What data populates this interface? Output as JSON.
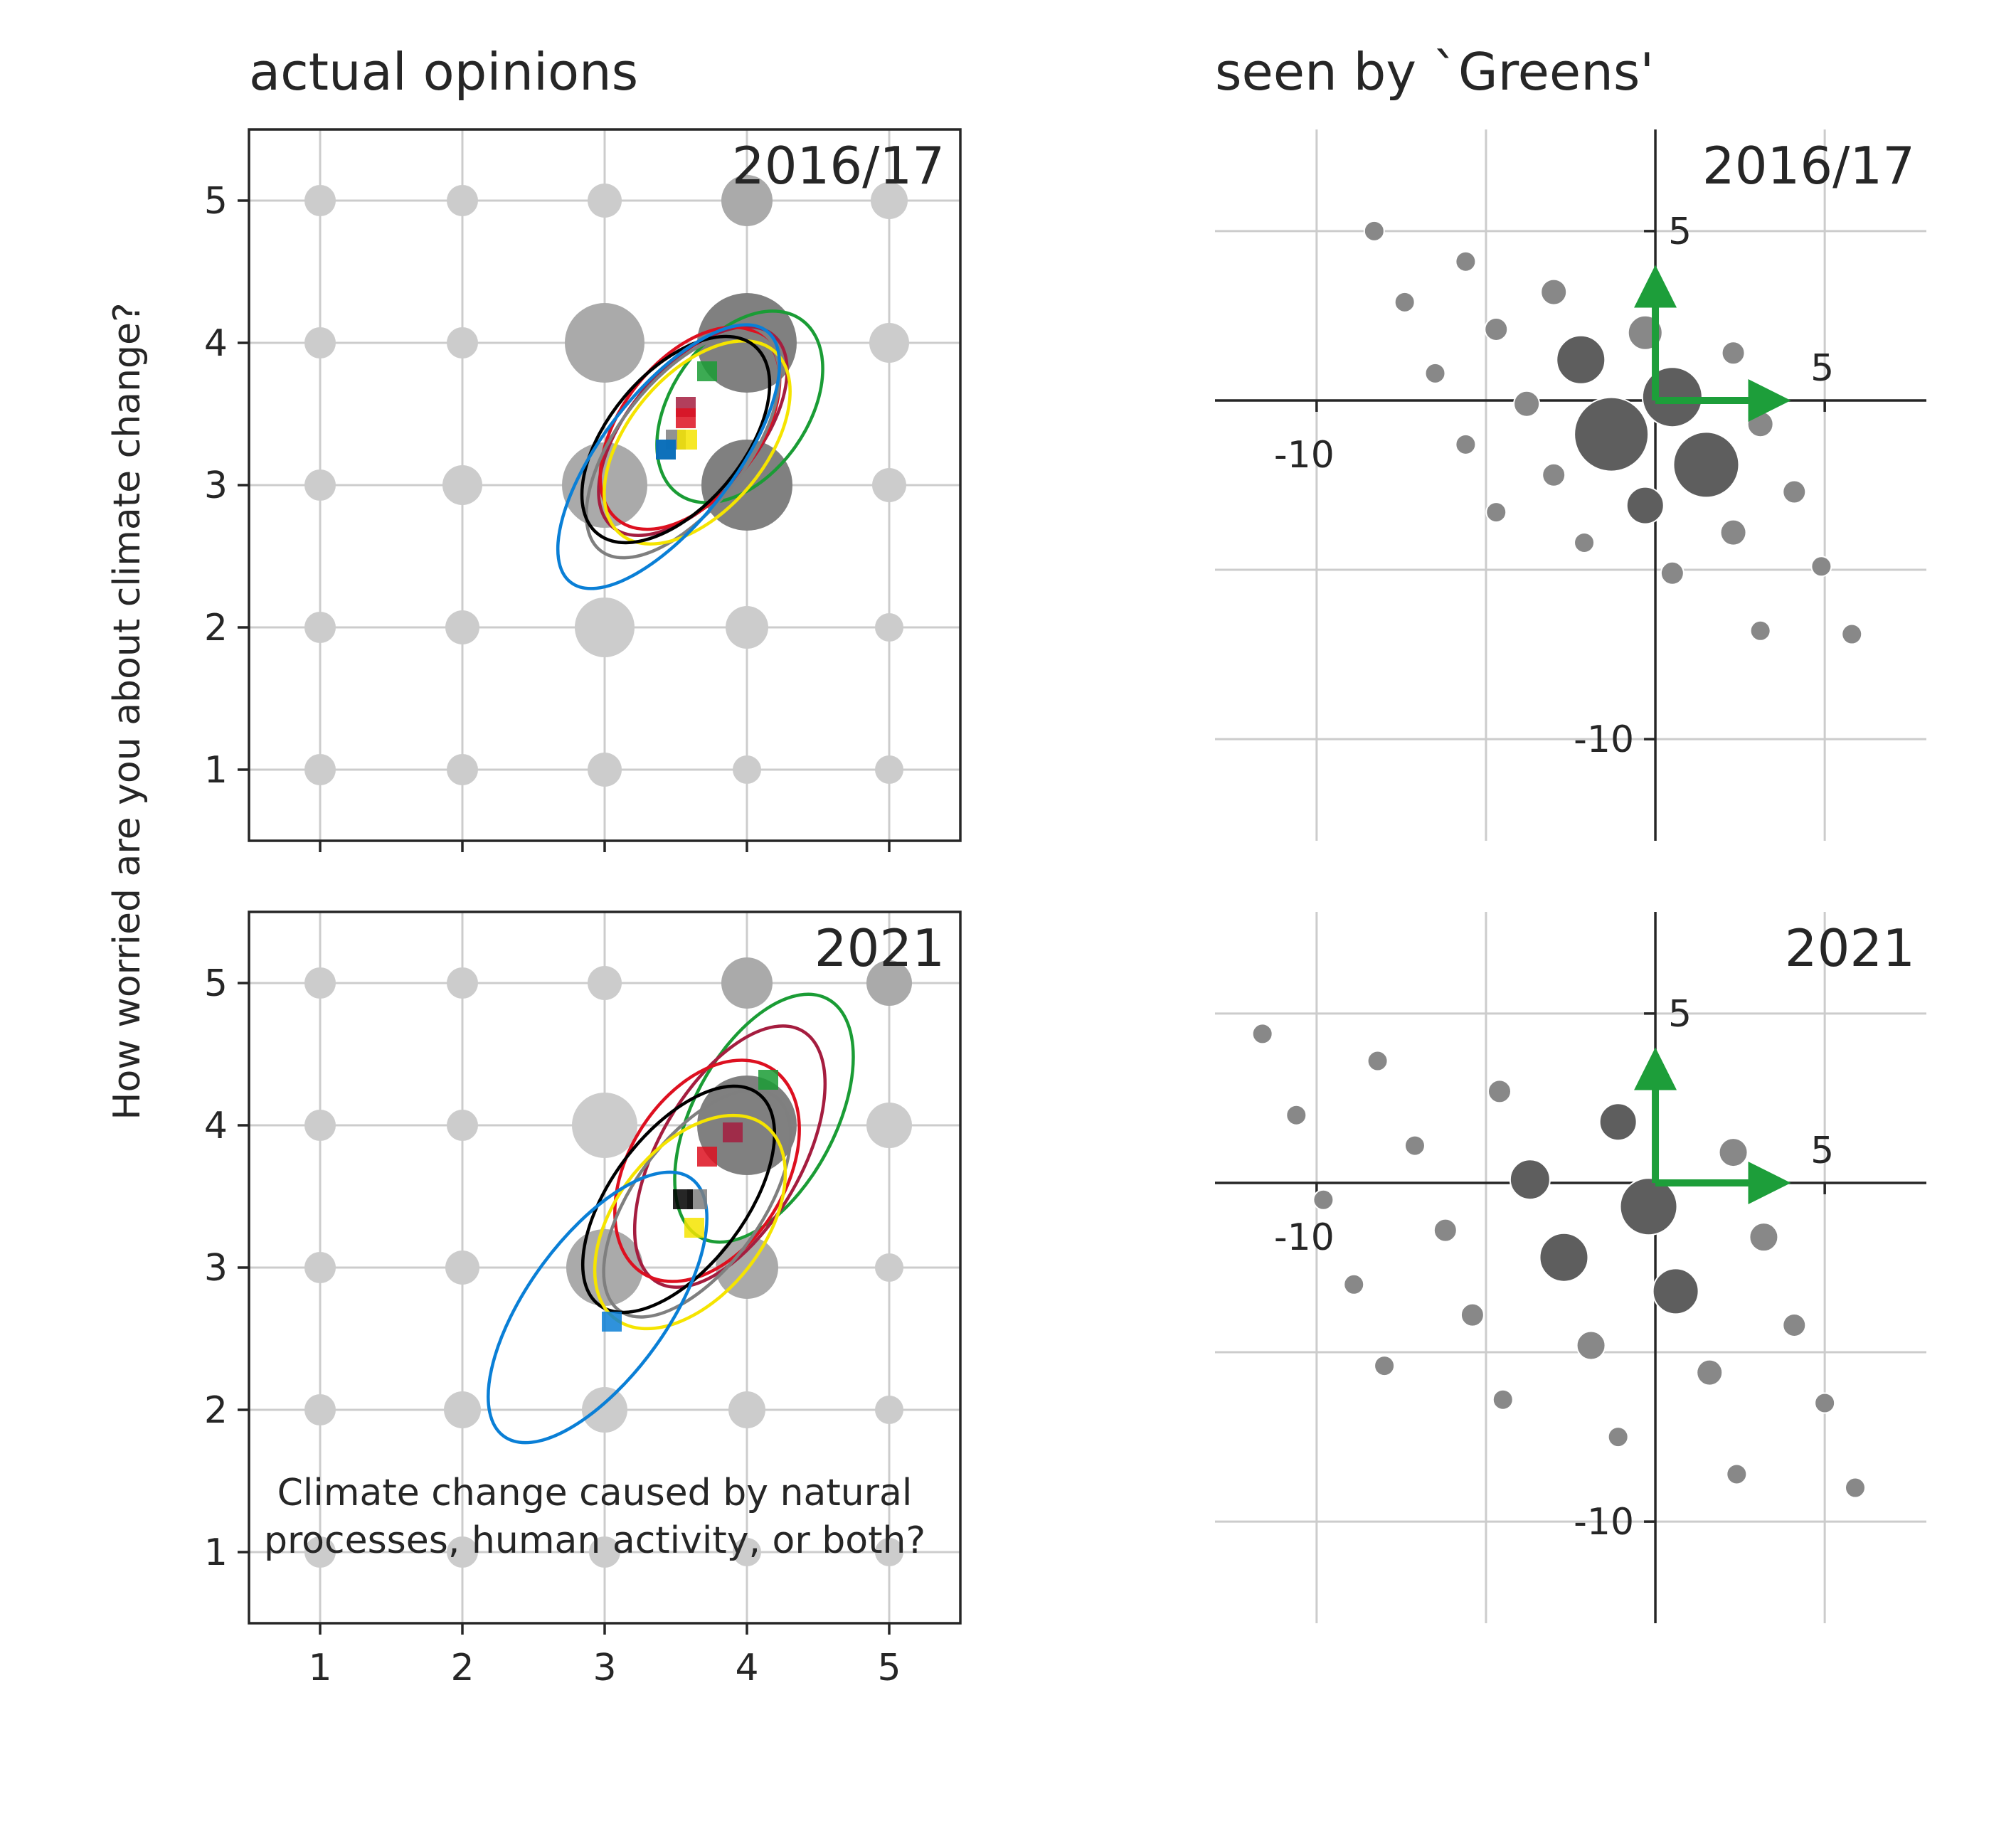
{
  "figure": {
    "left_title": "actual opinions",
    "right_title": "seen by `Greens'",
    "ylabel": "How worried are you about climate change?",
    "xlabel_line1": "Climate change caused by natural",
    "xlabel_line2": "processes, human activity, or both?"
  },
  "colors": {
    "grid": "#cccccc",
    "axis": "#262626",
    "bubble_light": "#cccccc",
    "bubble_mid": "#aaaaaa",
    "bubble_dark": "#808080",
    "embed_point": "#888888",
    "embed_big": "#5e5e5e",
    "arrow": "#1d9e3a"
  },
  "chart_data": [
    {
      "type": "scatter",
      "panel": "actual opinions",
      "title": "2016/17",
      "xlim": [
        0.5,
        5.5
      ],
      "ylim": [
        0.5,
        5.5
      ],
      "xticks": [
        1,
        2,
        3,
        4,
        5
      ],
      "yticks": [
        1,
        2,
        3,
        4,
        5
      ],
      "xtick_labels_shown": false,
      "bubbles": [
        {
          "x": 1,
          "y": 1,
          "size": 11,
          "tone": "light"
        },
        {
          "x": 2,
          "y": 1,
          "size": 11,
          "tone": "light"
        },
        {
          "x": 3,
          "y": 1,
          "size": 12,
          "tone": "light"
        },
        {
          "x": 4,
          "y": 1,
          "size": 10,
          "tone": "light"
        },
        {
          "x": 5,
          "y": 1,
          "size": 10,
          "tone": "light"
        },
        {
          "x": 1,
          "y": 2,
          "size": 11,
          "tone": "light"
        },
        {
          "x": 2,
          "y": 2,
          "size": 12,
          "tone": "light"
        },
        {
          "x": 3,
          "y": 2,
          "size": 21,
          "tone": "light"
        },
        {
          "x": 4,
          "y": 2,
          "size": 15,
          "tone": "light"
        },
        {
          "x": 5,
          "y": 2,
          "size": 10,
          "tone": "light"
        },
        {
          "x": 1,
          "y": 3,
          "size": 11,
          "tone": "light"
        },
        {
          "x": 2,
          "y": 3,
          "size": 14,
          "tone": "light"
        },
        {
          "x": 3,
          "y": 3,
          "size": 30,
          "tone": "mid"
        },
        {
          "x": 4,
          "y": 3,
          "size": 32,
          "tone": "dark"
        },
        {
          "x": 5,
          "y": 3,
          "size": 12,
          "tone": "light"
        },
        {
          "x": 1,
          "y": 4,
          "size": 11,
          "tone": "light"
        },
        {
          "x": 2,
          "y": 4,
          "size": 11,
          "tone": "light"
        },
        {
          "x": 3,
          "y": 4,
          "size": 28,
          "tone": "mid"
        },
        {
          "x": 4,
          "y": 4,
          "size": 35,
          "tone": "dark"
        },
        {
          "x": 5,
          "y": 4,
          "size": 14,
          "tone": "light"
        },
        {
          "x": 1,
          "y": 5,
          "size": 11,
          "tone": "light"
        },
        {
          "x": 2,
          "y": 5,
          "size": 11,
          "tone": "light"
        },
        {
          "x": 3,
          "y": 5,
          "size": 12,
          "tone": "light"
        },
        {
          "x": 4,
          "y": 5,
          "size": 18,
          "tone": "mid"
        },
        {
          "x": 5,
          "y": 5,
          "size": 13,
          "tone": "light"
        }
      ],
      "groups": [
        {
          "color": "#1a9c35",
          "mean": [
            3.72,
            3.8
          ],
          "ellipse": {
            "cx": 3.95,
            "cy": 3.55,
            "rx": 0.48,
            "ry": 0.75,
            "angle": 35
          }
        },
        {
          "color": "#a51d3f",
          "mean": [
            3.57,
            3.55
          ],
          "ellipse": {
            "cx": 3.62,
            "cy": 3.38,
            "rx": 0.45,
            "ry": 0.88,
            "angle": 40
          }
        },
        {
          "color": "#dd1020",
          "mean": [
            3.57,
            3.47
          ],
          "ellipse": {
            "cx": 3.6,
            "cy": 3.4,
            "rx": 0.48,
            "ry": 0.82,
            "angle": 38
          }
        },
        {
          "color": "#7f7f7f",
          "mean": [
            3.5,
            3.32
          ],
          "ellipse": {
            "cx": 3.55,
            "cy": 3.28,
            "rx": 0.45,
            "ry": 0.94,
            "angle": 38
          }
        },
        {
          "color": "#f5e400",
          "mean": [
            3.58,
            3.32
          ],
          "ellipse": {
            "cx": 3.65,
            "cy": 3.3,
            "rx": 0.48,
            "ry": 0.84,
            "angle": 40
          }
        },
        {
          "color": "#000000",
          "mean": [
            3.43,
            3.25
          ],
          "ellipse": {
            "cx": 3.5,
            "cy": 3.32,
            "rx": 0.47,
            "ry": 0.86,
            "angle": 40
          }
        },
        {
          "color": "#0a7fd6",
          "mean": [
            3.43,
            3.25
          ],
          "ellipse": {
            "cx": 3.45,
            "cy": 3.2,
            "rx": 0.46,
            "ry": 1.12,
            "angle": 38
          }
        }
      ]
    },
    {
      "type": "scatter",
      "panel": "actual opinions",
      "title": "2021",
      "xlim": [
        0.5,
        5.5
      ],
      "ylim": [
        0.5,
        5.5
      ],
      "xticks": [
        1,
        2,
        3,
        4,
        5
      ],
      "yticks": [
        1,
        2,
        3,
        4,
        5
      ],
      "xtick_labels_shown": true,
      "bubbles": [
        {
          "x": 1,
          "y": 1,
          "size": 11,
          "tone": "light"
        },
        {
          "x": 2,
          "y": 1,
          "size": 11,
          "tone": "light"
        },
        {
          "x": 3,
          "y": 1,
          "size": 11,
          "tone": "light"
        },
        {
          "x": 4,
          "y": 1,
          "size": 10,
          "tone": "light"
        },
        {
          "x": 5,
          "y": 1,
          "size": 10,
          "tone": "light"
        },
        {
          "x": 1,
          "y": 2,
          "size": 11,
          "tone": "light"
        },
        {
          "x": 2,
          "y": 2,
          "size": 13,
          "tone": "light"
        },
        {
          "x": 3,
          "y": 2,
          "size": 16,
          "tone": "light"
        },
        {
          "x": 4,
          "y": 2,
          "size": 13,
          "tone": "light"
        },
        {
          "x": 5,
          "y": 2,
          "size": 10,
          "tone": "light"
        },
        {
          "x": 1,
          "y": 3,
          "size": 11,
          "tone": "light"
        },
        {
          "x": 2,
          "y": 3,
          "size": 12,
          "tone": "light"
        },
        {
          "x": 3,
          "y": 3,
          "size": 27,
          "tone": "mid"
        },
        {
          "x": 4,
          "y": 3,
          "size": 22,
          "tone": "mid"
        },
        {
          "x": 5,
          "y": 3,
          "size": 10,
          "tone": "light"
        },
        {
          "x": 1,
          "y": 4,
          "size": 11,
          "tone": "light"
        },
        {
          "x": 2,
          "y": 4,
          "size": 11,
          "tone": "light"
        },
        {
          "x": 3,
          "y": 4,
          "size": 23,
          "tone": "light"
        },
        {
          "x": 4,
          "y": 4,
          "size": 35,
          "tone": "dark"
        },
        {
          "x": 5,
          "y": 4,
          "size": 16,
          "tone": "light"
        },
        {
          "x": 1,
          "y": 5,
          "size": 11,
          "tone": "light"
        },
        {
          "x": 2,
          "y": 5,
          "size": 11,
          "tone": "light"
        },
        {
          "x": 3,
          "y": 5,
          "size": 12,
          "tone": "light"
        },
        {
          "x": 4,
          "y": 5,
          "size": 18,
          "tone": "mid"
        },
        {
          "x": 5,
          "y": 5,
          "size": 16,
          "tone": "mid"
        }
      ],
      "groups": [
        {
          "color": "#1a9c35",
          "mean": [
            4.15,
            4.32
          ],
          "ellipse": {
            "cx": 4.12,
            "cy": 4.05,
            "rx": 0.5,
            "ry": 0.95,
            "angle": 28
          }
        },
        {
          "color": "#a51d3f",
          "mean": [
            3.9,
            3.95
          ],
          "ellipse": {
            "cx": 3.88,
            "cy": 3.78,
            "rx": 0.5,
            "ry": 1.02,
            "angle": 30
          }
        },
        {
          "color": "#dd1020",
          "mean": [
            3.72,
            3.78
          ],
          "ellipse": {
            "cx": 3.72,
            "cy": 3.68,
            "rx": 0.55,
            "ry": 0.85,
            "angle": 32
          }
        },
        {
          "color": "#7f7f7f",
          "mean": [
            3.65,
            3.48
          ],
          "ellipse": {
            "cx": 3.65,
            "cy": 3.45,
            "rx": 0.45,
            "ry": 0.93,
            "angle": 36
          }
        },
        {
          "color": "#000000",
          "mean": [
            3.55,
            3.48
          ],
          "ellipse": {
            "cx": 3.52,
            "cy": 3.48,
            "rx": 0.47,
            "ry": 0.93,
            "angle": 37
          }
        },
        {
          "color": "#f5e400",
          "mean": [
            3.63,
            3.28
          ],
          "ellipse": {
            "cx": 3.6,
            "cy": 3.32,
            "rx": 0.52,
            "ry": 0.86,
            "angle": 38
          }
        },
        {
          "color": "#0a7fd6",
          "mean": [
            3.05,
            2.62
          ],
          "ellipse": {
            "cx": 2.95,
            "cy": 2.72,
            "rx": 0.49,
            "ry": 1.12,
            "angle": 36
          }
        }
      ]
    },
    {
      "type": "scatter",
      "panel": "seen by `Greens'",
      "title": "2016/17",
      "xlim": [
        -13,
        8
      ],
      "ylim": [
        -13,
        8
      ],
      "xtick_labels": [
        "-10",
        "5"
      ],
      "ytick_labels": [
        "5",
        "-10"
      ],
      "ticks_at": [
        -10,
        5
      ],
      "arrows": [
        {
          "dx": 4,
          "dy": 0
        },
        {
          "dx": 0,
          "dy": 4
        }
      ],
      "points": [
        {
          "x": -8.3,
          "y": 5.0,
          "size": 7
        },
        {
          "x": -5.6,
          "y": 4.1,
          "size": 7
        },
        {
          "x": -7.4,
          "y": 2.9,
          "size": 7
        },
        {
          "x": -4.7,
          "y": 2.1,
          "size": 8
        },
        {
          "x": -3.0,
          "y": 3.2,
          "size": 9
        },
        {
          "x": -6.5,
          "y": 0.8,
          "size": 7
        },
        {
          "x": -2.2,
          "y": 1.2,
          "size": 17
        },
        {
          "x": -0.3,
          "y": 2.0,
          "size": 12
        },
        {
          "x": -3.8,
          "y": -0.1,
          "size": 9
        },
        {
          "x": 0.5,
          "y": 0.1,
          "size": 21
        },
        {
          "x": -5.6,
          "y": -1.3,
          "size": 7
        },
        {
          "x": -1.3,
          "y": -1.0,
          "size": 26
        },
        {
          "x": 1.5,
          "y": -1.9,
          "size": 23
        },
        {
          "x": 2.3,
          "y": 1.4,
          "size": 8
        },
        {
          "x": 3.1,
          "y": -0.7,
          "size": 9
        },
        {
          "x": -3.0,
          "y": -2.2,
          "size": 8
        },
        {
          "x": -0.3,
          "y": -3.1,
          "size": 13
        },
        {
          "x": 4.1,
          "y": -2.7,
          "size": 8
        },
        {
          "x": -4.7,
          "y": -3.3,
          "size": 7
        },
        {
          "x": 2.3,
          "y": -3.9,
          "size": 9
        },
        {
          "x": -2.1,
          "y": -4.2,
          "size": 7
        },
        {
          "x": 0.5,
          "y": -5.1,
          "size": 8
        },
        {
          "x": 4.9,
          "y": -4.9,
          "size": 7
        },
        {
          "x": 3.1,
          "y": -6.8,
          "size": 7
        },
        {
          "x": 5.8,
          "y": -6.9,
          "size": 7
        }
      ]
    },
    {
      "type": "scatter",
      "panel": "seen by `Greens'",
      "title": "2021",
      "xlim": [
        -13,
        8
      ],
      "ylim": [
        -13,
        8
      ],
      "xtick_labels": [
        "-10",
        "5"
      ],
      "ytick_labels": [
        "5",
        "-10"
      ],
      "ticks_at": [
        -10,
        5
      ],
      "arrows": [
        {
          "dx": 4,
          "dy": 0
        },
        {
          "dx": 0,
          "dy": 4
        }
      ],
      "points": [
        {
          "x": -11.6,
          "y": 4.4,
          "size": 7
        },
        {
          "x": -8.2,
          "y": 3.6,
          "size": 7
        },
        {
          "x": -10.6,
          "y": 2.0,
          "size": 7
        },
        {
          "x": -7.1,
          "y": 1.1,
          "size": 7
        },
        {
          "x": -4.6,
          "y": 2.7,
          "size": 8
        },
        {
          "x": -1.1,
          "y": 1.8,
          "size": 13
        },
        {
          "x": 2.3,
          "y": 0.9,
          "size": 10
        },
        {
          "x": -3.7,
          "y": 0.1,
          "size": 14
        },
        {
          "x": -9.8,
          "y": -0.5,
          "size": 7
        },
        {
          "x": -6.2,
          "y": -1.4,
          "size": 8
        },
        {
          "x": -0.2,
          "y": -0.7,
          "size": 20
        },
        {
          "x": 3.2,
          "y": -1.6,
          "size": 10
        },
        {
          "x": -2.7,
          "y": -2.2,
          "size": 17
        },
        {
          "x": -8.9,
          "y": -3.0,
          "size": 7
        },
        {
          "x": 0.6,
          "y": -3.2,
          "size": 16
        },
        {
          "x": -5.4,
          "y": -3.9,
          "size": 8
        },
        {
          "x": 4.1,
          "y": -4.2,
          "size": 8
        },
        {
          "x": -1.9,
          "y": -4.8,
          "size": 10
        },
        {
          "x": -8.0,
          "y": -5.4,
          "size": 7
        },
        {
          "x": 1.6,
          "y": -5.6,
          "size": 9
        },
        {
          "x": -4.5,
          "y": -6.4,
          "size": 7
        },
        {
          "x": 5.0,
          "y": -6.5,
          "size": 7
        },
        {
          "x": -1.1,
          "y": -7.5,
          "size": 7
        },
        {
          "x": 2.4,
          "y": -8.6,
          "size": 7
        },
        {
          "x": 5.9,
          "y": -9.0,
          "size": 7
        }
      ]
    }
  ]
}
